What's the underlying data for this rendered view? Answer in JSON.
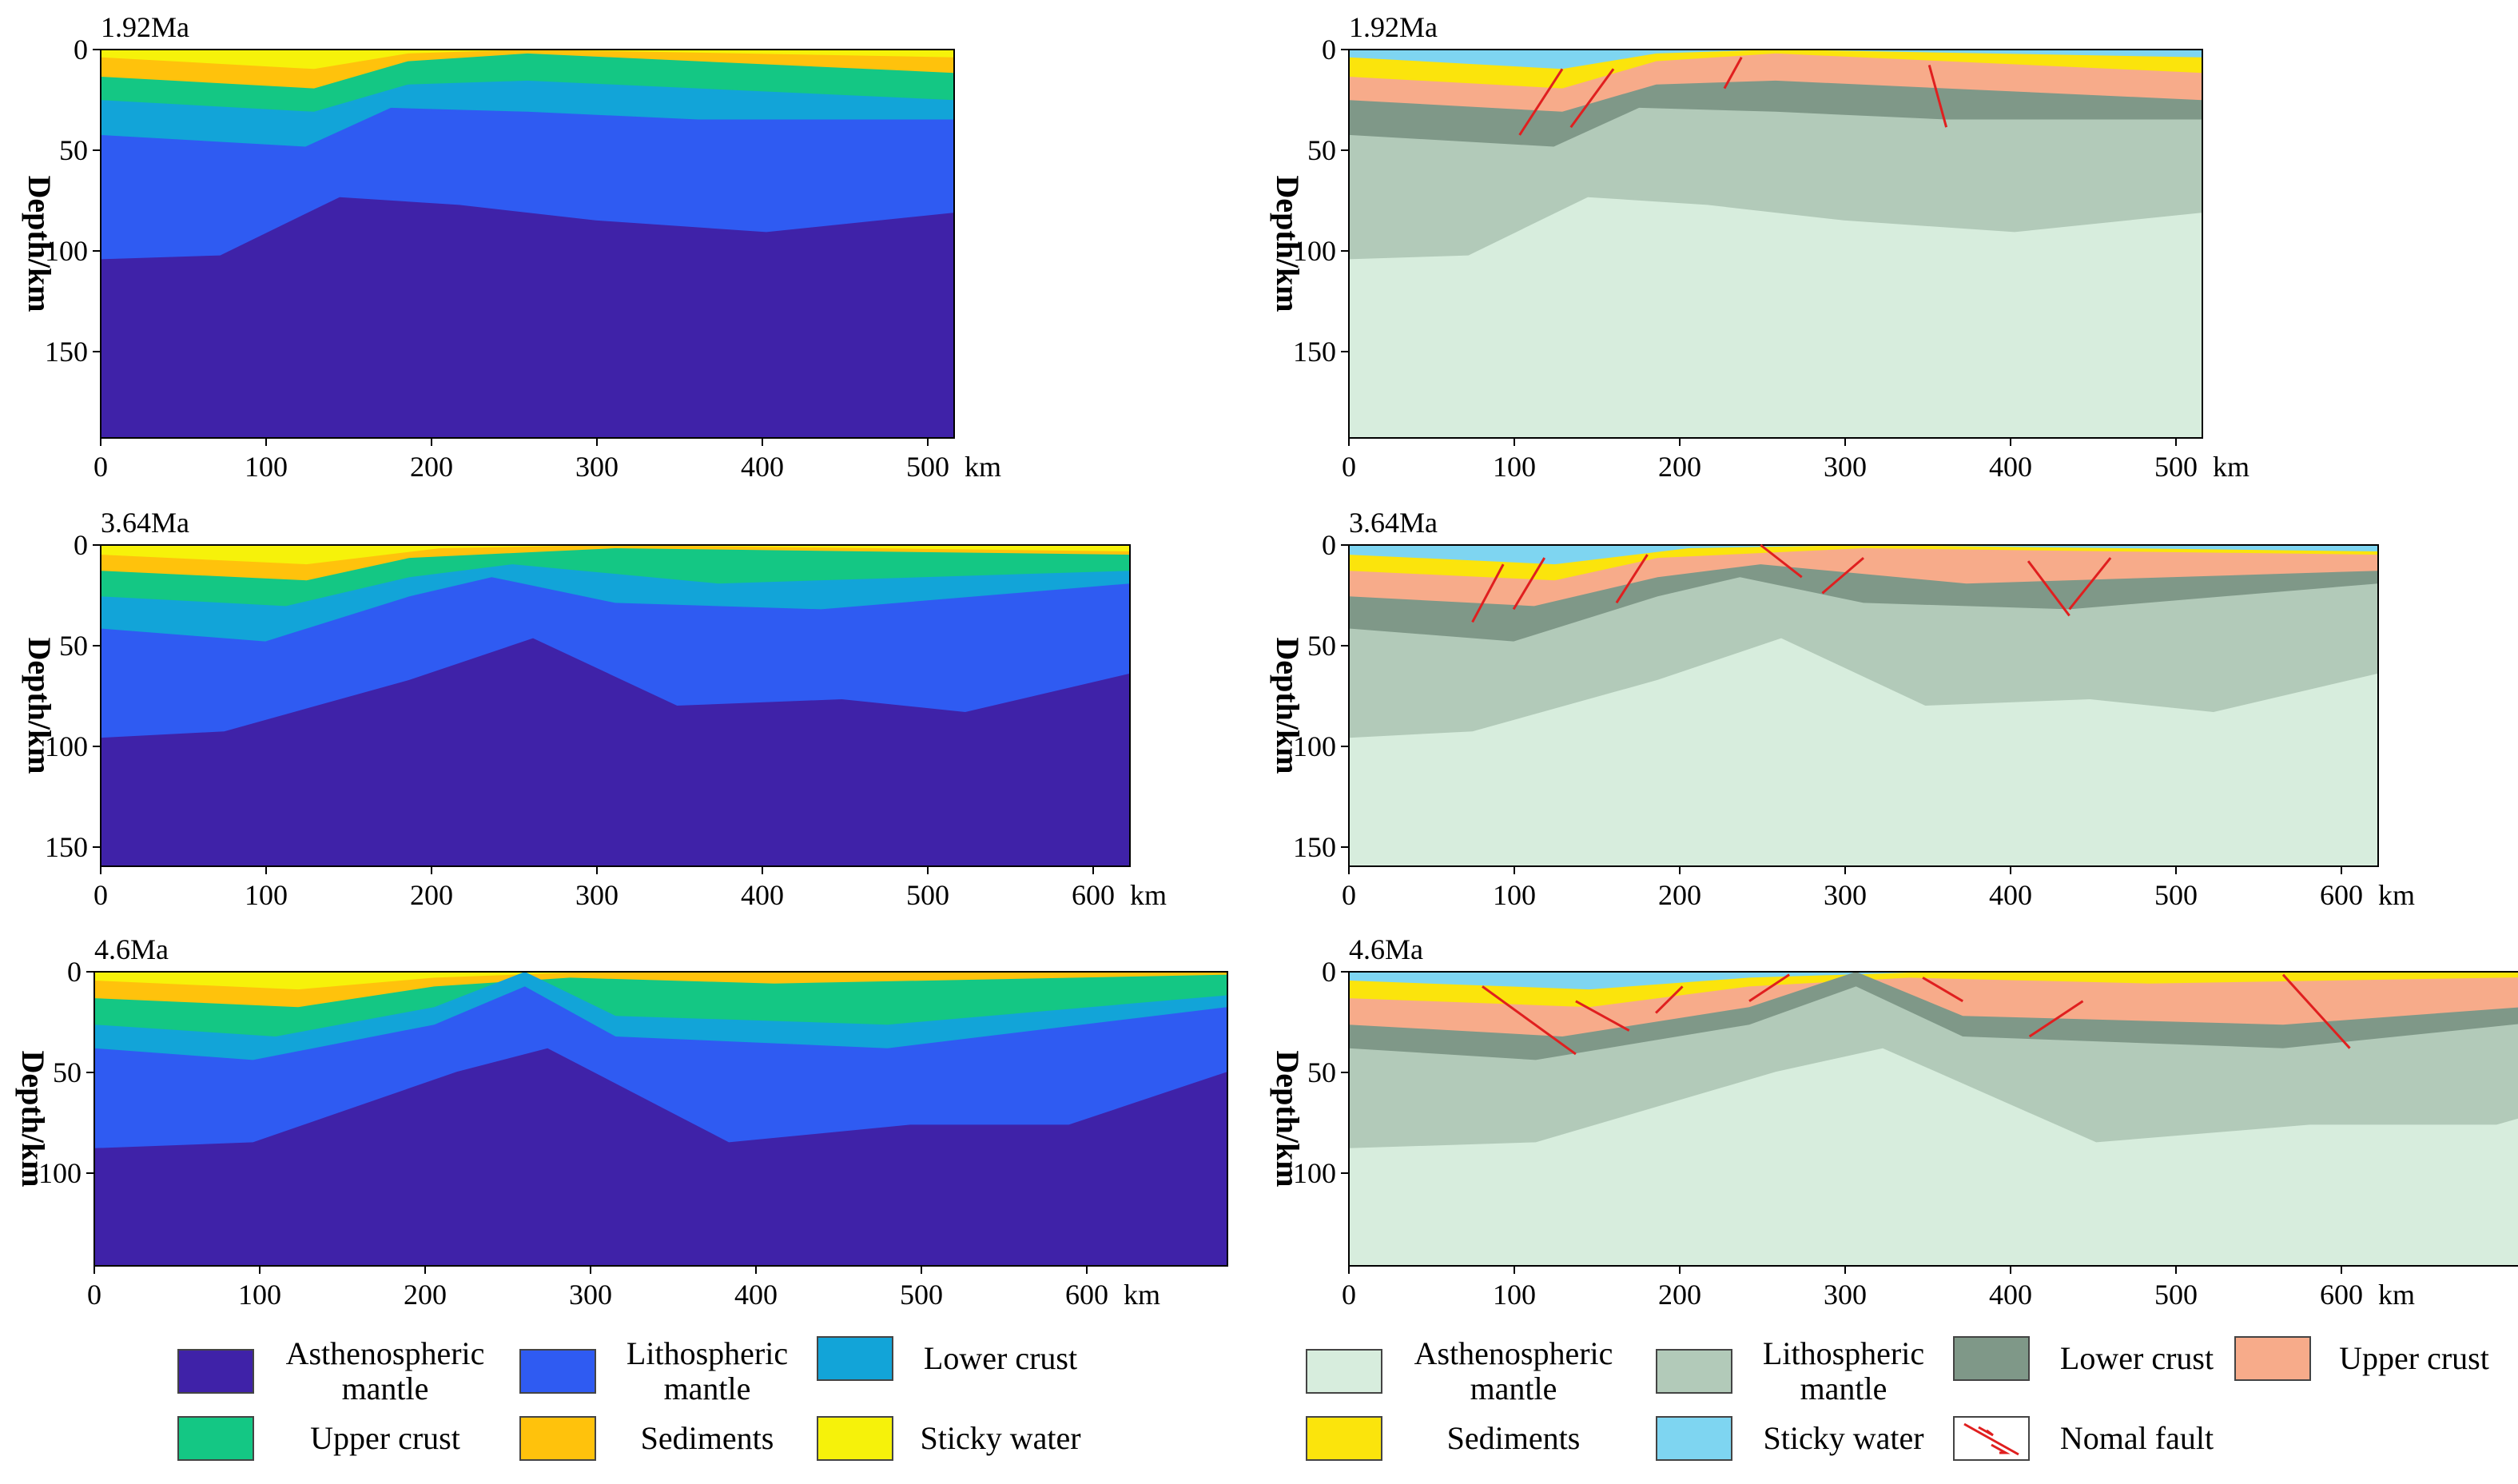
{
  "colors": {
    "left": {
      "asthenosphere": "#3f22a8",
      "lithosphere": "#2f5bf2",
      "lower_crust": "#12a4d8",
      "upper_crust": "#14c784",
      "sediments": "#ffc20c",
      "sticky_water": "#f6f20a"
    },
    "right": {
      "asthenosphere": "#d7eddd",
      "lithosphere": "#b2cab9",
      "lower_crust": "#7f9888",
      "upper_crust": "#f7ab8a",
      "sediments": "#fbe40c",
      "sticky_water": "#7ed5f1"
    },
    "fault": "#e01f1f"
  },
  "axis": {
    "ylabel": "Depth/km",
    "unit": "km"
  },
  "panels": [
    {
      "id": "1-92",
      "time": "1.92Ma",
      "xticks": [
        "0",
        "100",
        "200",
        "300",
        "400",
        "500"
      ],
      "yticks": [
        "0",
        "50",
        "100",
        "150"
      ]
    },
    {
      "id": "3-64",
      "time": "3.64Ma",
      "xticks": [
        "0",
        "100",
        "200",
        "300",
        "400",
        "500",
        "600"
      ],
      "yticks": [
        "0",
        "50",
        "100",
        "150"
      ]
    },
    {
      "id": "4-6",
      "time": "4.6Ma",
      "xticks": [
        "0",
        "100",
        "200",
        "300",
        "400",
        "500",
        "600"
      ],
      "yticks": [
        "0",
        "50",
        "100"
      ]
    }
  ],
  "legend_left": [
    {
      "key": "asthenosphere",
      "label": "Asthenospheric mantle"
    },
    {
      "key": "lithosphere",
      "label": "Lithospheric mantle"
    },
    {
      "key": "lower_crust",
      "label": "Lower crust"
    },
    {
      "key": "upper_crust",
      "label": "Upper crust"
    },
    {
      "key": "sediments",
      "label": "Sediments"
    },
    {
      "key": "sticky_water",
      "label": "Sticky water"
    }
  ],
  "legend_right": [
    {
      "key": "asthenosphere",
      "label": "Asthenospheric mantle"
    },
    {
      "key": "lithosphere",
      "label": "Lithospheric mantle"
    },
    {
      "key": "lower_crust",
      "label": "Lower crust"
    },
    {
      "key": "upper_crust",
      "label": "Upper crust"
    },
    {
      "key": "sediments",
      "label": "Sediments"
    },
    {
      "key": "sticky_water",
      "label": "Sticky water"
    },
    {
      "key": "fault",
      "label": "Nomal fault"
    }
  ]
}
